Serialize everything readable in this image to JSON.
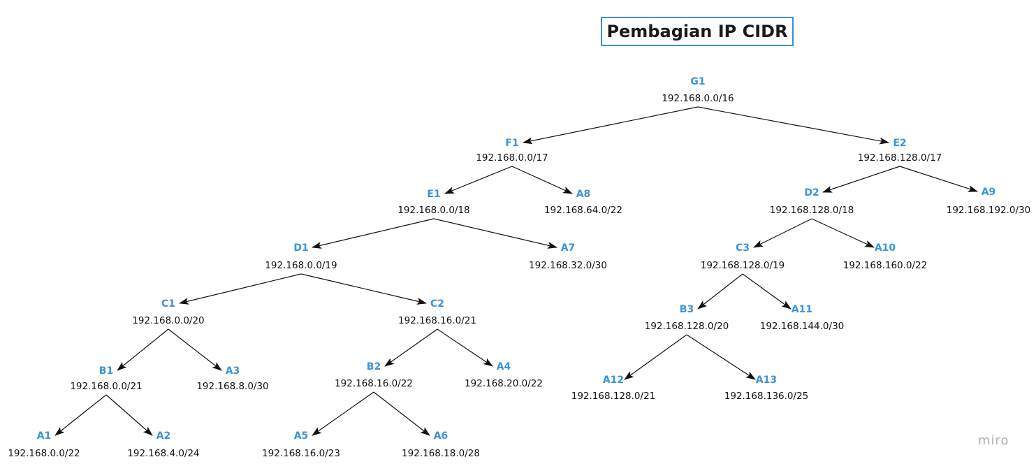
{
  "title": "Pembagian IP CIDR",
  "watermark": "miro",
  "colors": {
    "node_name": "#3b93d9",
    "title_border": "#3b8fd6",
    "text": "#111111"
  },
  "nodes": [
    {
      "id": "G1",
      "name": "G1",
      "ip": "192.168.0.0/16"
    },
    {
      "id": "F1",
      "name": "F1",
      "ip": "192.168.0.0/17"
    },
    {
      "id": "E2",
      "name": "E2",
      "ip": "192.168.128.0/17"
    },
    {
      "id": "E1",
      "name": "E1",
      "ip": "192.168.0.0/18"
    },
    {
      "id": "A8",
      "name": "A8",
      "ip": "192.168.64.0/22"
    },
    {
      "id": "D2",
      "name": "D2",
      "ip": "192.168.128.0/18"
    },
    {
      "id": "A9",
      "name": "A9",
      "ip": "192.168.192.0/30"
    },
    {
      "id": "D1",
      "name": "D1",
      "ip": "192.168.0.0/19"
    },
    {
      "id": "A7",
      "name": "A7",
      "ip": "192.168.32.0/30"
    },
    {
      "id": "C3",
      "name": "C3",
      "ip": "192.168.128.0/19"
    },
    {
      "id": "A10",
      "name": "A10",
      "ip": "192.168.160.0/22"
    },
    {
      "id": "C1",
      "name": "C1",
      "ip": "192.168.0.0/20"
    },
    {
      "id": "C2",
      "name": "C2",
      "ip": "192.168.16.0/21"
    },
    {
      "id": "B3",
      "name": "B3",
      "ip": "192.168.128.0/20"
    },
    {
      "id": "A11",
      "name": "A11",
      "ip": "192.168.144.0/30"
    },
    {
      "id": "B1",
      "name": "B1",
      "ip": "192.168.0.0/21"
    },
    {
      "id": "A3",
      "name": "A3",
      "ip": "192.168.8.0/30"
    },
    {
      "id": "B2",
      "name": "B2",
      "ip": "192.168.16.0/22"
    },
    {
      "id": "A4",
      "name": "A4",
      "ip": "192.168.20.0/22"
    },
    {
      "id": "A12",
      "name": "A12",
      "ip": "192.168.128.0/21"
    },
    {
      "id": "A13",
      "name": "A13",
      "ip": "192.168.136.0/25"
    },
    {
      "id": "A1",
      "name": "A1",
      "ip": "192.168.0.0/22"
    },
    {
      "id": "A2",
      "name": "A2",
      "ip": "192.168.4.0/24"
    },
    {
      "id": "A5",
      "name": "A5",
      "ip": "192.168.16.0/23"
    },
    {
      "id": "A6",
      "name": "A6",
      "ip": "192.168.18.0/28"
    }
  ],
  "edges": [
    {
      "from": "G1",
      "to": "F1"
    },
    {
      "from": "G1",
      "to": "E2"
    },
    {
      "from": "F1",
      "to": "E1"
    },
    {
      "from": "F1",
      "to": "A8"
    },
    {
      "from": "E2",
      "to": "D2"
    },
    {
      "from": "E2",
      "to": "A9"
    },
    {
      "from": "E1",
      "to": "D1"
    },
    {
      "from": "E1",
      "to": "A7"
    },
    {
      "from": "D2",
      "to": "C3"
    },
    {
      "from": "D2",
      "to": "A10"
    },
    {
      "from": "D1",
      "to": "C1"
    },
    {
      "from": "D1",
      "to": "C2"
    },
    {
      "from": "C3",
      "to": "B3"
    },
    {
      "from": "C3",
      "to": "A11"
    },
    {
      "from": "C1",
      "to": "B1"
    },
    {
      "from": "C1",
      "to": "A3"
    },
    {
      "from": "C2",
      "to": "B2"
    },
    {
      "from": "C2",
      "to": "A4"
    },
    {
      "from": "B3",
      "to": "A12"
    },
    {
      "from": "B3",
      "to": "A13"
    },
    {
      "from": "B1",
      "to": "A1"
    },
    {
      "from": "B1",
      "to": "A2"
    },
    {
      "from": "B2",
      "to": "A5"
    },
    {
      "from": "B2",
      "to": "A6"
    }
  ]
}
